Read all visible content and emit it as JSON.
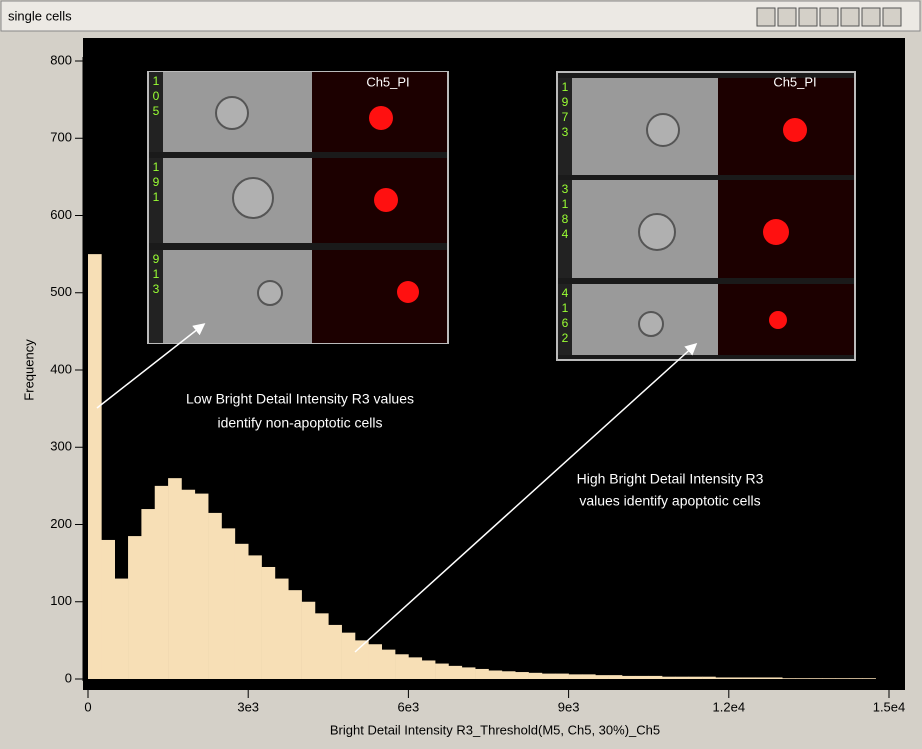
{
  "window": {
    "title": "single cells"
  },
  "insets": [
    {
      "channel": "Ch5_PI",
      "ids": [
        "105",
        "191",
        "913"
      ]
    },
    {
      "channel": "Ch5_PI",
      "ids": [
        "1973",
        "3184",
        "4162"
      ]
    }
  ],
  "chart_data": {
    "type": "histogram",
    "xlabel": "Bright Detail Intensity R3_Threshold(M5, Ch5, 30%)_Ch5",
    "ylabel": "Frequency",
    "annotations": [
      [
        "Low Bright Detail Intensity R3 values",
        "identify non-apoptotic cells"
      ],
      [
        "High Bright Detail Intensity R3",
        "values identify apoptotic cells"
      ]
    ],
    "color": "#f7dfb6",
    "bins": [
      0,
      250,
      500,
      750,
      1000,
      1250,
      1500,
      1750,
      2000,
      2250,
      2500,
      2750,
      3000,
      3250,
      3500,
      3750,
      4000,
      4250,
      4500,
      4750,
      5000,
      5250,
      5500,
      5750,
      6000,
      6250,
      6500,
      6750,
      7000,
      7250,
      7500,
      7750,
      8000,
      8250,
      8500,
      8750,
      9000,
      9250,
      9500,
      9750,
      10000,
      10250,
      10500,
      10750,
      11000,
      11250,
      11500,
      11750,
      12000,
      12250,
      12500,
      12750,
      13000,
      13250,
      13500,
      13750,
      14000,
      14250,
      14500,
      14750,
      15000
    ],
    "values": [
      550,
      180,
      130,
      185,
      220,
      250,
      260,
      245,
      240,
      215,
      195,
      175,
      160,
      145,
      130,
      115,
      100,
      85,
      70,
      60,
      50,
      45,
      38,
      32,
      28,
      24,
      20,
      17,
      15,
      13,
      11,
      10,
      9,
      8,
      7,
      7,
      6,
      6,
      5,
      5,
      4,
      4,
      4,
      3,
      3,
      3,
      3,
      2,
      2,
      2,
      2,
      2,
      1,
      1,
      1,
      1,
      1,
      1,
      1,
      0
    ],
    "xlim": [
      0,
      15000
    ],
    "ylim": [
      0,
      800
    ],
    "xticks": [
      0,
      {
        "value": 3000,
        "label": "3e3"
      },
      {
        "value": 6000,
        "label": "6e3"
      },
      {
        "value": 9000,
        "label": "9e3"
      },
      {
        "value": 12000,
        "label": "1.2e4"
      },
      {
        "value": 15000,
        "label": "1.5e4"
      }
    ],
    "yticks": [
      0,
      100,
      200,
      300,
      400,
      500,
      600,
      700,
      800
    ]
  }
}
